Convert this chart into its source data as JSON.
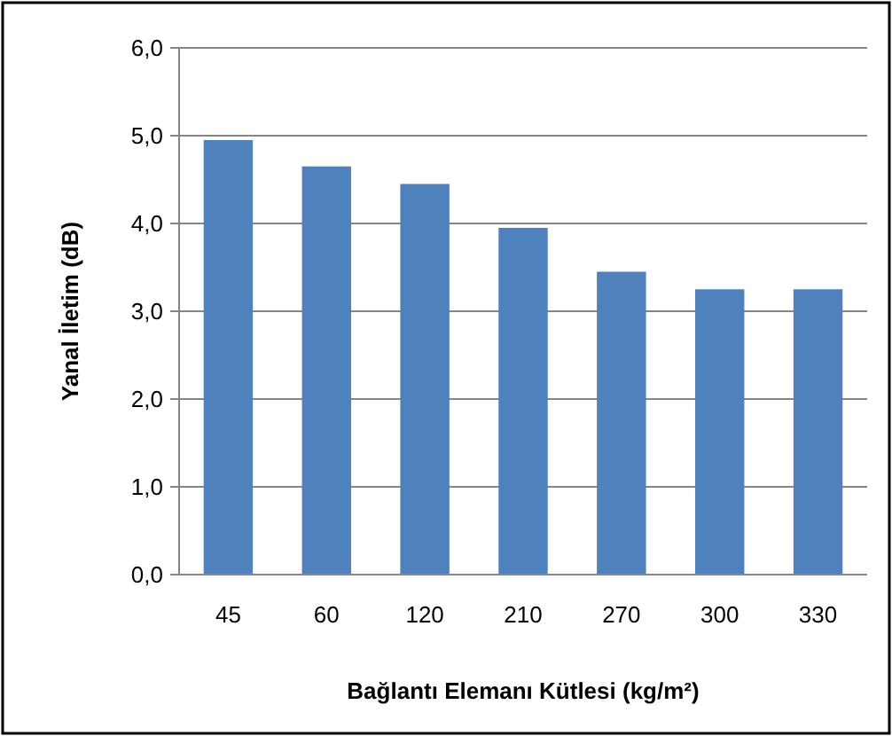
{
  "chart_data": {
    "type": "bar",
    "xlabel": "Bağlantı Elemanı Kütlesi (kg/m²)",
    "ylabel": "Yanal İletim (dB)",
    "categories": [
      "45",
      "60",
      "120",
      "210",
      "270",
      "300",
      "330"
    ],
    "values": [
      4.95,
      4.65,
      4.45,
      3.95,
      3.45,
      3.25,
      3.25
    ],
    "color": "#4f81bd",
    "ylim": [
      0,
      6
    ],
    "yticks": [
      {
        "value": 0,
        "label": "0,0"
      },
      {
        "value": 1,
        "label": "1,0"
      },
      {
        "value": 2,
        "label": "2,0"
      },
      {
        "value": 3,
        "label": "3,0"
      },
      {
        "value": 4,
        "label": "4,0"
      },
      {
        "value": 5,
        "label": "5,0"
      },
      {
        "value": 6,
        "label": "6,0"
      }
    ],
    "grid": "y"
  }
}
